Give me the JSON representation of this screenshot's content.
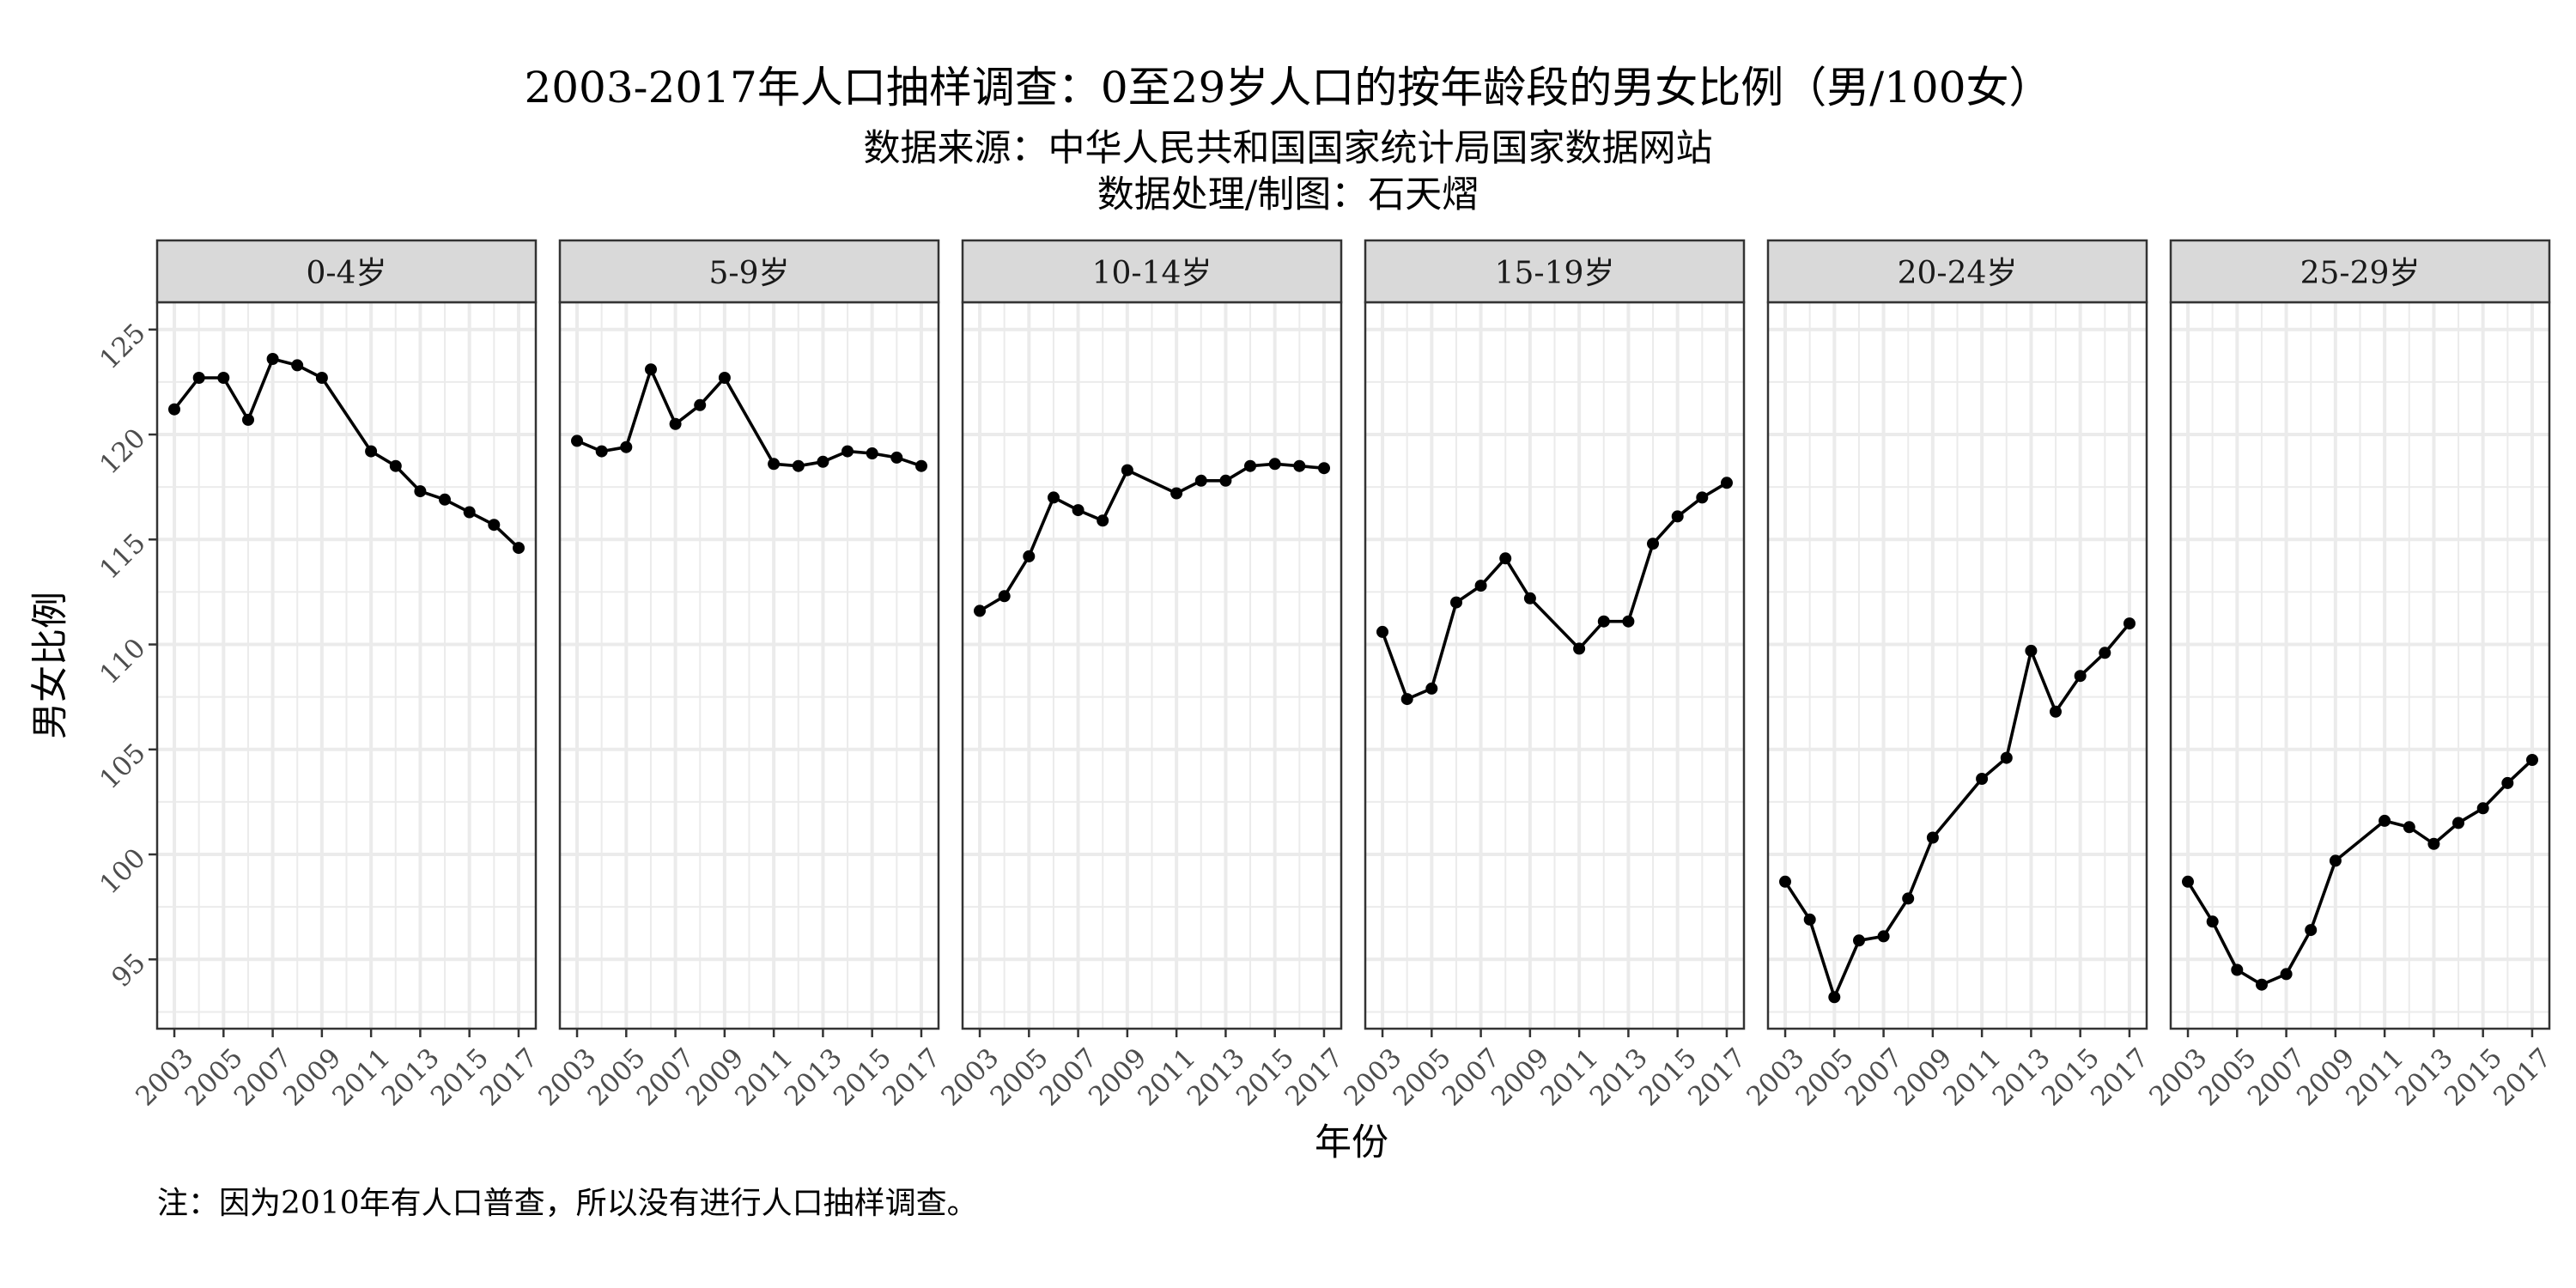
{
  "title": "2003-2017年人口抽样调查：0至29岁人口的按年龄段的男女比例（男/100女）",
  "subtitle_lines": [
    "数据来源：中华人民共和国国家统计局国家数据网站",
    "数据处理/制图：石天熠"
  ],
  "note": "注：因为2010年有人口普查，所以没有进行人口抽样调查。",
  "colors": {
    "line": "#000000",
    "strip_fill": "#d9d9d9",
    "grid": "#ebebeb",
    "border": "#333333"
  },
  "chart_data": {
    "type": "line",
    "facet_layout": "1 row × 6 panels, shared y-axis",
    "xlabel": "年份",
    "ylabel": "男女比例",
    "xlim": [
      2002.3,
      2017.7
    ],
    "ylim": [
      91.7,
      126.3
    ],
    "x_ticks": [
      2003,
      2005,
      2007,
      2009,
      2011,
      2013,
      2015,
      2017
    ],
    "x_tick_labels": [
      "2003",
      "2005",
      "2007",
      "2009",
      "2011",
      "2013",
      "2015",
      "2017"
    ],
    "y_ticks": [
      95,
      100,
      105,
      110,
      115,
      120,
      125
    ],
    "y_tick_labels": [
      "95",
      "100",
      "105",
      "110",
      "115",
      "120",
      "125"
    ],
    "grid": true,
    "x": [
      2003,
      2004,
      2005,
      2006,
      2007,
      2008,
      2009,
      2011,
      2012,
      2013,
      2014,
      2015,
      2016,
      2017
    ],
    "panels": [
      {
        "label": "0-4岁",
        "values": [
          121.2,
          122.7,
          122.7,
          120.7,
          123.6,
          123.3,
          122.7,
          119.2,
          118.5,
          117.3,
          116.9,
          116.3,
          115.7,
          114.6
        ]
      },
      {
        "label": "5-9岁",
        "values": [
          119.7,
          119.2,
          119.4,
          123.1,
          120.5,
          121.4,
          122.7,
          118.6,
          118.5,
          118.7,
          119.2,
          119.1,
          118.9,
          118.5
        ]
      },
      {
        "label": "10-14岁",
        "values": [
          111.6,
          112.3,
          114.2,
          117.0,
          116.4,
          115.9,
          118.3,
          117.2,
          117.8,
          117.8,
          118.5,
          118.6,
          118.5,
          118.4
        ]
      },
      {
        "label": "15-19岁",
        "values": [
          110.6,
          107.4,
          107.9,
          112.0,
          112.8,
          114.1,
          112.2,
          109.8,
          111.1,
          111.1,
          114.8,
          116.1,
          117.0,
          117.7
        ]
      },
      {
        "label": "20-24岁",
        "values": [
          98.7,
          96.9,
          93.2,
          95.9,
          96.1,
          97.9,
          100.8,
          103.6,
          104.6,
          109.7,
          106.8,
          108.5,
          109.6,
          111.0
        ]
      },
      {
        "label": "25-29岁",
        "values": [
          98.7,
          96.8,
          94.5,
          93.8,
          94.3,
          96.4,
          99.7,
          101.6,
          101.3,
          100.5,
          101.5,
          102.2,
          103.4,
          104.5
        ]
      }
    ]
  }
}
